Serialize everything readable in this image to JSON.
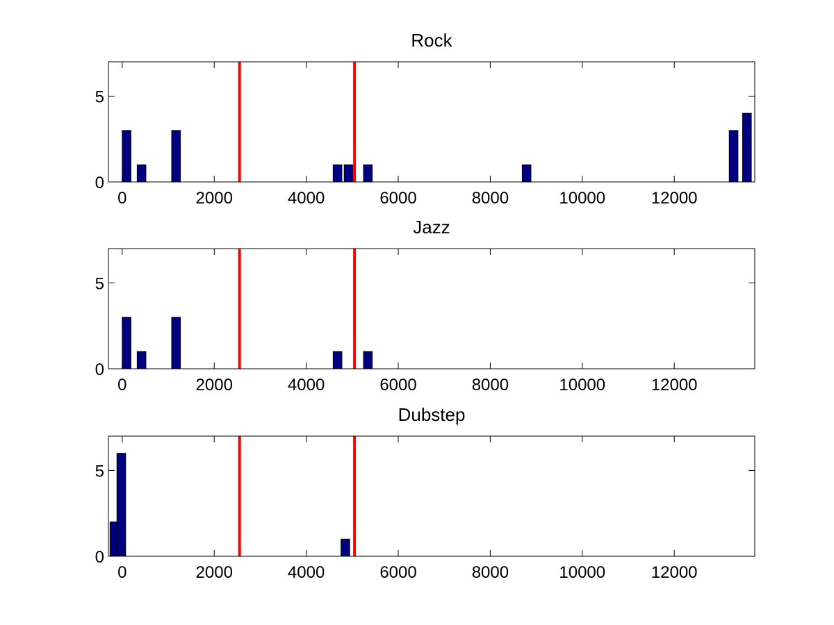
{
  "chart_data": [
    {
      "type": "bar",
      "title": "Rock",
      "xlim": [
        -300,
        13750
      ],
      "ylim": [
        0,
        7
      ],
      "xticks": [
        0,
        2000,
        4000,
        6000,
        8000,
        10000,
        12000
      ],
      "yticks": [
        0,
        5
      ],
      "bar_width": 190,
      "bars": [
        {
          "x": 95,
          "y": 3
        },
        {
          "x": 420,
          "y": 1
        },
        {
          "x": 1170,
          "y": 3
        },
        {
          "x": 4680,
          "y": 1
        },
        {
          "x": 4920,
          "y": 1
        },
        {
          "x": 5340,
          "y": 1
        },
        {
          "x": 8790,
          "y": 1
        },
        {
          "x": 13290,
          "y": 3
        },
        {
          "x": 13580,
          "y": 4
        }
      ],
      "vlines": [
        2550,
        5050
      ]
    },
    {
      "type": "bar",
      "title": "Jazz",
      "xlim": [
        -300,
        13750
      ],
      "ylim": [
        0,
        7
      ],
      "xticks": [
        0,
        2000,
        4000,
        6000,
        8000,
        10000,
        12000
      ],
      "yticks": [
        0,
        5
      ],
      "bar_width": 190,
      "bars": [
        {
          "x": 95,
          "y": 3
        },
        {
          "x": 420,
          "y": 1
        },
        {
          "x": 1170,
          "y": 3
        },
        {
          "x": 4680,
          "y": 1
        },
        {
          "x": 5340,
          "y": 1
        }
      ],
      "vlines": [
        2550,
        5050
      ]
    },
    {
      "type": "bar",
      "title": "Dubstep",
      "xlim": [
        -300,
        13750
      ],
      "ylim": [
        0,
        7
      ],
      "xticks": [
        0,
        2000,
        4000,
        6000,
        8000,
        10000,
        12000
      ],
      "yticks": [
        0,
        5
      ],
      "bar_width": 190,
      "bars": [
        {
          "x": -170,
          "y": 2
        },
        {
          "x": -20,
          "y": 6
        },
        {
          "x": 4850,
          "y": 1
        }
      ],
      "vlines": [
        2550,
        5050
      ]
    }
  ],
  "colors": {
    "bar_fill": "#000080",
    "vline": "#ff0000",
    "background": "#ffffff"
  }
}
